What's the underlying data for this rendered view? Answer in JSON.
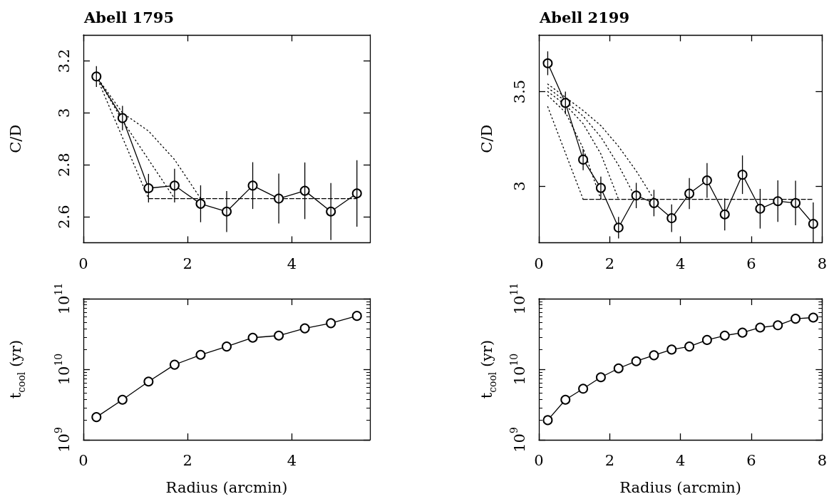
{
  "chart_data": [
    {
      "type": "line",
      "title": "Abell 1795",
      "ylabel": "C/D",
      "xlim": [
        0,
        5.5
      ],
      "xticks": [
        0,
        2,
        4
      ],
      "ylim": [
        2.5,
        3.3
      ],
      "yticks": [
        2.6,
        2.8,
        3,
        3.2
      ],
      "x": [
        0.25,
        0.75,
        1.25,
        1.75,
        2.25,
        2.75,
        3.25,
        3.75,
        4.25,
        4.75,
        5.25
      ],
      "series": [
        {
          "color": "#000000",
          "marker": "circle",
          "line_style": "solid",
          "values": [
            3.14,
            2.98,
            2.71,
            2.72,
            2.65,
            2.62,
            2.72,
            2.67,
            2.7,
            2.62,
            2.69
          ],
          "errors": [
            0.04,
            0.047,
            0.055,
            0.065,
            0.071,
            0.079,
            0.09,
            0.096,
            0.109,
            0.11,
            0.128
          ]
        },
        {
          "color": "#000000",
          "marker": "none",
          "line_style": "dotted",
          "x": [
            0.25,
            1.25
          ],
          "values": [
            3.14,
            2.67
          ]
        },
        {
          "color": "#000000",
          "marker": "none",
          "line_style": "dotted",
          "x": [
            0.25,
            0.75,
            1.25,
            1.75
          ],
          "values": [
            3.14,
            2.97,
            2.82,
            2.67
          ]
        },
        {
          "color": "#000000",
          "marker": "none",
          "line_style": "dotted",
          "x": [
            0.25,
            0.75,
            1.25,
            1.75,
            2.25
          ],
          "values": [
            3.14,
            3.0,
            2.93,
            2.82,
            2.67
          ]
        },
        {
          "color": "#000000",
          "marker": "none",
          "line_style": "dashed",
          "x": [
            1.25,
            5.25
          ],
          "values": [
            2.67,
            2.67
          ]
        }
      ]
    },
    {
      "type": "line",
      "title": "Abell 2199",
      "ylabel": "C/D",
      "xlim": [
        0,
        8
      ],
      "xticks": [
        0,
        2,
        4,
        6,
        8
      ],
      "ylim": [
        2.7,
        3.8
      ],
      "yticks": [
        3,
        3.5
      ],
      "x": [
        0.25,
        0.75,
        1.25,
        1.75,
        2.25,
        2.75,
        3.25,
        3.75,
        4.25,
        4.75,
        5.25,
        5.75,
        6.25,
        6.75,
        7.25,
        7.75
      ],
      "series": [
        {
          "color": "#000000",
          "marker": "circle",
          "line_style": "solid",
          "values": [
            3.65,
            3.44,
            3.14,
            2.99,
            2.78,
            2.95,
            2.91,
            2.83,
            2.96,
            3.03,
            2.85,
            3.06,
            2.88,
            2.92,
            2.91,
            2.8
          ],
          "errors": [
            0.063,
            0.06,
            0.056,
            0.06,
            0.057,
            0.067,
            0.07,
            0.073,
            0.082,
            0.092,
            0.085,
            0.102,
            0.105,
            0.11,
            0.118,
            [
              2.7,
              2.913
            ]
          ]
        },
        {
          "color": "#000000",
          "marker": "none",
          "line_style": "dotted",
          "x": [
            0.25,
            1.25
          ],
          "values": [
            3.42,
            2.93
          ]
        },
        {
          "color": "#000000",
          "marker": "none",
          "line_style": "dotted",
          "x": [
            0.25,
            0.75,
            1.25,
            1.75
          ],
          "values": [
            3.48,
            3.39,
            3.2,
            2.93
          ]
        },
        {
          "color": "#000000",
          "marker": "none",
          "line_style": "dotted",
          "x": [
            0.25,
            0.75,
            1.25,
            1.75,
            2.25
          ],
          "values": [
            3.5,
            3.43,
            3.33,
            3.17,
            2.93
          ]
        },
        {
          "color": "#000000",
          "marker": "none",
          "line_style": "dotted",
          "x": [
            0.25,
            0.75,
            1.25,
            1.75,
            2.25,
            2.75
          ],
          "values": [
            3.52,
            3.45,
            3.37,
            3.26,
            3.11,
            2.93
          ]
        },
        {
          "color": "#000000",
          "marker": "none",
          "line_style": "dotted",
          "x": [
            0.25,
            0.75,
            1.25,
            1.75,
            2.25,
            2.75,
            3.25
          ],
          "values": [
            3.54,
            3.47,
            3.4,
            3.32,
            3.21,
            3.08,
            2.93
          ]
        },
        {
          "color": "#000000",
          "marker": "none",
          "line_style": "dashed",
          "x": [
            1.25,
            7.75
          ],
          "values": [
            2.93,
            2.93
          ]
        }
      ]
    },
    {
      "type": "line",
      "xlabel": "Radius (arcmin)",
      "ylabel": "t$_{cool}$ (yr)",
      "log": true,
      "xlim": [
        0,
        5.5
      ],
      "xticks": [
        0,
        2,
        4
      ],
      "ylim": [
        1000000000,
        100000000000
      ],
      "yticks": [
        {
          "value": 1000000000,
          "label": "10$^{9}$"
        },
        {
          "value": 10000000000,
          "label": "10$^{10}$"
        },
        {
          "value": 100000000000,
          "label": "10$^{11}$"
        }
      ],
      "x": [
        0.25,
        0.75,
        1.25,
        1.75,
        2.25,
        2.75,
        3.25,
        3.75,
        4.25,
        4.75,
        5.25
      ],
      "series": [
        {
          "color": "#000000",
          "marker": "circle",
          "line_style": "solid",
          "values": [
            2100000000.0,
            3700000000.0,
            6700000000.0,
            11600000000.0,
            16000000000.0,
            21000000000.0,
            28000000000.0,
            30000000000.0,
            38000000000.0,
            45000000000.0,
            57000000000.0
          ]
        }
      ]
    },
    {
      "type": "line",
      "xlabel": "Radius (arcmin)",
      "ylabel": "t$_{cool}$ (yr)",
      "log": true,
      "xlim": [
        0,
        8
      ],
      "xticks": [
        0,
        2,
        4,
        6,
        8
      ],
      "ylim": [
        1000000000,
        100000000000
      ],
      "yticks": [
        {
          "value": 1000000000,
          "label": "10$^{9}$"
        },
        {
          "value": 10000000000,
          "label": "10$^{10}$"
        },
        {
          "value": 100000000000,
          "label": "10$^{11}$"
        }
      ],
      "x": [
        0.25,
        0.75,
        1.25,
        1.75,
        2.25,
        2.75,
        3.25,
        3.75,
        4.25,
        4.75,
        5.25,
        5.75,
        6.25,
        6.75,
        7.25,
        7.75
      ],
      "series": [
        {
          "color": "#000000",
          "marker": "circle",
          "line_style": "solid",
          "values": [
            1900000000.0,
            3700000000.0,
            5300000000.0,
            7700000000.0,
            10300000000.0,
            13000000000.0,
            15800000000.0,
            19000000000.0,
            21000000000.0,
            26000000000.0,
            30000000000.0,
            33000000000.0,
            39000000000.0,
            42000000000.0,
            52000000000.0,
            54000000000.0
          ]
        }
      ]
    }
  ]
}
